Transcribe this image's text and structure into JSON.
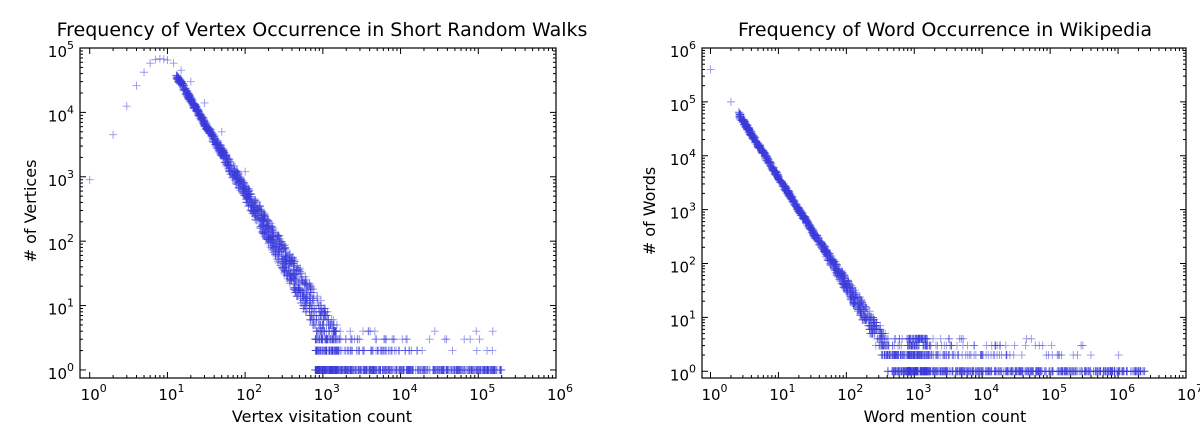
{
  "chart_data": [
    {
      "type": "scatter",
      "title": "Frequency of Vertex Occurrence in Short Random Walks",
      "xlabel": "Vertex visitation count",
      "ylabel": "# of Vertices",
      "xscale": "log",
      "yscale": "log",
      "xlim": [
        0.75,
        1000000
      ],
      "ylim": [
        0.75,
        100000
      ],
      "x_tick_exponents": [
        "0",
        "1",
        "2",
        "3",
        "4",
        "5",
        "6"
      ],
      "y_tick_exponents": [
        "0",
        "1",
        "2",
        "3",
        "4",
        "5"
      ],
      "tick_base": "10",
      "marker": "+",
      "color": "#3b3bdb",
      "grid": false,
      "series": [
        {
          "head_points": [
            [
              1,
              900
            ],
            [
              2,
              4500
            ],
            [
              3,
              12500
            ],
            [
              4,
              26000
            ],
            [
              5,
              42000
            ],
            [
              6,
              58000
            ],
            [
              7,
              66000
            ],
            [
              8,
              68000
            ],
            [
              9,
              67000
            ],
            [
              10,
              65000
            ],
            [
              12,
              58000
            ],
            [
              15,
              45000
            ],
            [
              20,
              30000
            ],
            [
              30,
              14000
            ],
            [
              50,
              5000
            ],
            [
              100,
              1200
            ]
          ],
          "powerlaw": {
            "anchor_x": 10,
            "anchor_y": 65000,
            "slope": -2.05,
            "x_max": 1000,
            "x_end": 200000
          }
        }
      ]
    },
    {
      "type": "scatter",
      "title": "Frequency of Word Occurrence in Wikipedia",
      "xlabel": "Word mention count",
      "ylabel": "# of Words",
      "xscale": "log",
      "yscale": "log",
      "xlim": [
        0.75,
        10000000
      ],
      "ylim": [
        0.75,
        1000000
      ],
      "x_tick_exponents": [
        "0",
        "1",
        "2",
        "3",
        "4",
        "5",
        "6",
        "7"
      ],
      "y_tick_exponents": [
        "0",
        "1",
        "2",
        "3",
        "4",
        "5",
        "6"
      ],
      "tick_base": "10",
      "marker": "+",
      "color": "#3b3bdb",
      "grid": false,
      "series": [
        {
          "head_points": [
            [
              1,
              400000
            ],
            [
              2,
              100000
            ],
            [
              3,
              45000
            ],
            [
              4,
              25000
            ],
            [
              5,
              16000
            ],
            [
              6,
              11000
            ],
            [
              8,
              6000
            ],
            [
              10,
              4000
            ],
            [
              15,
              1800
            ],
            [
              20,
              1000
            ],
            [
              30,
              450
            ],
            [
              50,
              160
            ],
            [
              100,
              40
            ]
          ],
          "powerlaw": {
            "anchor_x": 2,
            "anchor_y": 100000,
            "slope": -2.0,
            "x_max": 1000,
            "x_end": 2500000
          }
        }
      ]
    }
  ]
}
